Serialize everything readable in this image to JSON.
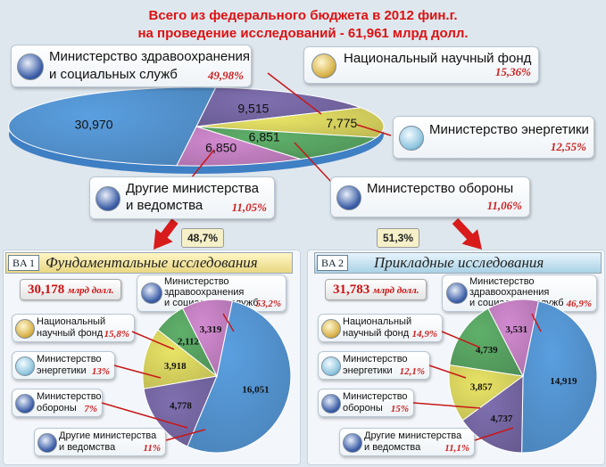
{
  "title_line1": "Всего из федерального бюджета в 2012 фин.г.",
  "title_line2": "на проведение исследований - 61,961 млрд долл.",
  "top": {
    "cards": {
      "hhs": {
        "label_1": "Министерство здравоохранения",
        "label_2": "и социальных служб",
        "pct": "49,98%"
      },
      "nsf": {
        "label_1": "Национальный научный фонд",
        "pct": "15,36%"
      },
      "doe": {
        "label_1": "Министерство энергетики",
        "pct": "12,55%"
      },
      "dod": {
        "label_1": "Министерство обороны",
        "pct": "11,06%"
      },
      "other": {
        "label_1": "Другие министерства",
        "label_2": "и ведомства",
        "pct": "11,05%"
      }
    }
  },
  "split": {
    "left_pct": "48,7%",
    "right_pct": "51,3%"
  },
  "left": {
    "code": "BA 1",
    "title": "Фундаментальные исследования",
    "total_value": "30,178",
    "total_unit": "млрд долл.",
    "cards": {
      "hhs": {
        "label_1": "Министерство",
        "label_2": "здравоохранения",
        "label_3": "и социальных служб",
        "pct": "53,2%"
      },
      "nsf": {
        "label_1": "Национальный",
        "label_2": "научный фонд",
        "pct": "15,8%"
      },
      "doe": {
        "label_1": "Министерство",
        "label_2": "энергетики",
        "pct": "13%"
      },
      "dod": {
        "label_1": "Министерство",
        "label_2": "обороны",
        "pct": "7%"
      },
      "other": {
        "label_1": "Другие министерства",
        "label_2": "и ведомства",
        "pct": "11%"
      }
    }
  },
  "right": {
    "code": "BA 2",
    "title": "Прикладные исследования",
    "total_value": "31,783",
    "total_unit": "млрд долл.",
    "cards": {
      "hhs": {
        "label_1": "Министерство",
        "label_2": "здравоохранения",
        "label_3": "и социальных служб",
        "pct": "46,9%"
      },
      "nsf": {
        "label_1": "Национальный",
        "label_2": "научный фонд",
        "pct": "14,9%"
      },
      "doe": {
        "label_1": "Министерство",
        "label_2": "энергетики",
        "pct": "12,1%"
      },
      "dod": {
        "label_1": "Министерство",
        "label_2": "обороны",
        "pct": "15%"
      },
      "other": {
        "label_1": "Другие министерства",
        "label_2": "и ведомства",
        "pct": "11,1%"
      }
    }
  },
  "colors": {
    "hhs": "#5a9fe0",
    "nsf": "#7f6fb0",
    "doe": "#e9e466",
    "dod": "#5fb06a",
    "other": "#d28ad0"
  },
  "chart_data": [
    {
      "type": "pie",
      "categories": [
        "HHS",
        "NSF",
        "DOE",
        "DOD",
        "Other"
      ],
      "values": [
        30.97,
        9.515,
        7.775,
        6.851,
        6.85
      ],
      "value_labels": [
        "30,970",
        "9,515",
        "7,775",
        "6,851",
        "6,850"
      ]
    },
    {
      "type": "pie",
      "categories": [
        "HHS",
        "NSF",
        "DOE",
        "DOD",
        "Other"
      ],
      "values": [
        16.051,
        4.778,
        3.918,
        2.112,
        3.319
      ],
      "value_labels": [
        "16,051",
        "4,778",
        "3,918",
        "2,112",
        "3,319"
      ]
    },
    {
      "type": "pie",
      "categories": [
        "HHS",
        "NSF",
        "DOE",
        "DOD",
        "Other"
      ],
      "values": [
        14.919,
        4.737,
        3.857,
        4.739,
        3.531
      ],
      "value_labels": [
        "14,919",
        "4,737",
        "3,857",
        "4,739",
        "3,531"
      ]
    }
  ]
}
